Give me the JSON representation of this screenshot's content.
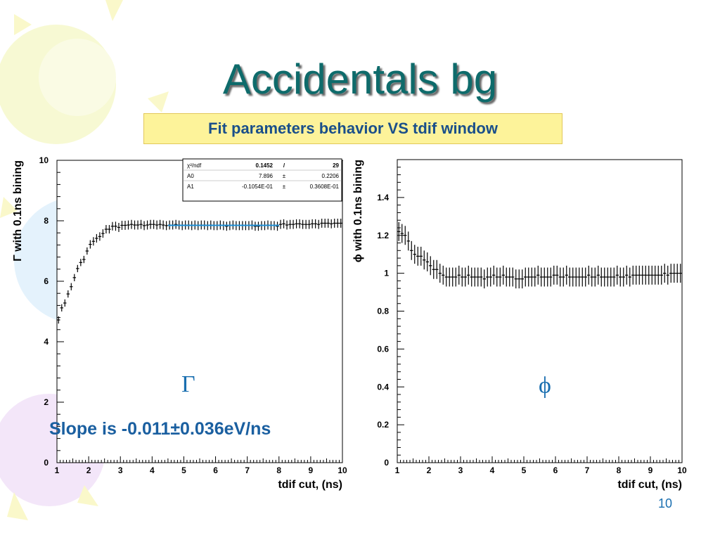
{
  "slide": {
    "title": "Accidentals bg",
    "subtitle": "Fit parameters behavior VS tdif window",
    "slope_text": "Slope is -0.011±0.036eV/ns",
    "page_number": "10",
    "colors": {
      "title": "#0e6b6b",
      "subtitle_bg": "#fdf39a",
      "subtitle_text": "#1a4f8a",
      "annotation": "#1a6fb0"
    }
  },
  "chart_data": [
    {
      "type": "scatter",
      "name": "gamma-plot",
      "title": "",
      "xlabel": "tdif cut, (ns)",
      "ylabel": "Γ with 0.1ns bining",
      "annotation": "Γ",
      "xlim": [
        1,
        10
      ],
      "ylim": [
        0,
        10
      ],
      "xticks": [
        "1",
        "2",
        "3",
        "4",
        "5",
        "6",
        "7",
        "8",
        "9",
        "10"
      ],
      "yticks": [
        "0",
        "2",
        "4",
        "6",
        "8",
        "10"
      ],
      "grid": false,
      "error_bars": true,
      "x": [
        1.05,
        1.15,
        1.25,
        1.35,
        1.45,
        1.55,
        1.65,
        1.75,
        1.85,
        1.95,
        2.05,
        2.15,
        2.25,
        2.35,
        2.45,
        2.55,
        2.65,
        2.75,
        2.85,
        2.95,
        3.05,
        3.15,
        3.25,
        3.35,
        3.45,
        3.55,
        3.65,
        3.75,
        3.85,
        3.95,
        4.05,
        4.15,
        4.25,
        4.35,
        4.45,
        4.55,
        4.65,
        4.75,
        4.85,
        4.95,
        5.05,
        5.15,
        5.25,
        5.35,
        5.45,
        5.55,
        5.65,
        5.75,
        5.85,
        5.95,
        6.05,
        6.15,
        6.25,
        6.35,
        6.45,
        6.55,
        6.65,
        6.75,
        6.85,
        6.95,
        7.05,
        7.15,
        7.25,
        7.35,
        7.45,
        7.55,
        7.65,
        7.75,
        7.85,
        7.95,
        8.05,
        8.15,
        8.25,
        8.35,
        8.45,
        8.55,
        8.65,
        8.75,
        8.85,
        8.95,
        9.05,
        9.15,
        9.25,
        9.35,
        9.45,
        9.55,
        9.65,
        9.75,
        9.85,
        9.95
      ],
      "y": [
        4.72,
        5.12,
        5.28,
        5.58,
        5.82,
        6.12,
        6.42,
        6.62,
        6.72,
        7.0,
        7.22,
        7.32,
        7.42,
        7.48,
        7.58,
        7.72,
        7.72,
        7.82,
        7.82,
        7.78,
        7.85,
        7.85,
        7.86,
        7.88,
        7.86,
        7.86,
        7.88,
        7.84,
        7.86,
        7.88,
        7.88,
        7.86,
        7.88,
        7.86,
        7.84,
        7.86,
        7.86,
        7.88,
        7.86,
        7.84,
        7.86,
        7.86,
        7.84,
        7.86,
        7.84,
        7.86,
        7.86,
        7.84,
        7.86,
        7.84,
        7.84,
        7.86,
        7.84,
        7.82,
        7.84,
        7.86,
        7.84,
        7.84,
        7.84,
        7.84,
        7.84,
        7.86,
        7.82,
        7.82,
        7.84,
        7.84,
        7.86,
        7.84,
        7.84,
        7.82,
        7.88,
        7.9,
        7.86,
        7.88,
        7.88,
        7.9,
        7.9,
        7.88,
        7.88,
        7.88,
        7.9,
        7.9,
        7.88,
        7.92,
        7.92,
        7.92,
        7.9,
        7.92,
        7.92,
        7.92
      ],
      "yerr": [
        0.12,
        0.12,
        0.12,
        0.12,
        0.12,
        0.12,
        0.12,
        0.12,
        0.12,
        0.12,
        0.14,
        0.14,
        0.14,
        0.14,
        0.14,
        0.14,
        0.14,
        0.14,
        0.15,
        0.15,
        0.15,
        0.15,
        0.15,
        0.15,
        0.15,
        0.15,
        0.15,
        0.15,
        0.15,
        0.15,
        0.15,
        0.15,
        0.15,
        0.15,
        0.15,
        0.15,
        0.15,
        0.15,
        0.15,
        0.15,
        0.15,
        0.15,
        0.15,
        0.15,
        0.15,
        0.15,
        0.15,
        0.15,
        0.15,
        0.15,
        0.15,
        0.15,
        0.15,
        0.15,
        0.15,
        0.15,
        0.15,
        0.15,
        0.15,
        0.15,
        0.15,
        0.15,
        0.15,
        0.15,
        0.15,
        0.15,
        0.15,
        0.15,
        0.15,
        0.15,
        0.15,
        0.15,
        0.15,
        0.15,
        0.15,
        0.15,
        0.15,
        0.15,
        0.15,
        0.15,
        0.15,
        0.15,
        0.15,
        0.15,
        0.15,
        0.15,
        0.15,
        0.15,
        0.15,
        0.15
      ],
      "fit": {
        "x": [
          4.5,
          8.0
        ],
        "y": [
          7.85,
          7.85
        ],
        "color": "#1f8fd6"
      },
      "stats_box": {
        "rows": [
          [
            "χ²/ndf",
            "0.1452",
            "/",
            "29"
          ],
          [
            "A0",
            "7.896",
            "±",
            "0.2206"
          ],
          [
            "A1",
            "-0.1054E-01",
            "±",
            "0.3608E-01"
          ]
        ]
      }
    },
    {
      "type": "scatter",
      "name": "phi-plot",
      "title": "",
      "xlabel": "tdif cut, (ns)",
      "ylabel": "ϕ with 0.1ns bining",
      "annotation": "ϕ",
      "xlim": [
        1,
        10
      ],
      "ylim": [
        0,
        1.6
      ],
      "xticks": [
        "1",
        "2",
        "3",
        "4",
        "5",
        "6",
        "7",
        "8",
        "9",
        "10"
      ],
      "yticks": [
        "0",
        "0.2",
        "0.4",
        "0.6",
        "0.8",
        "1",
        "1.2",
        "1.4"
      ],
      "grid": false,
      "error_bars": true,
      "x": [
        1.05,
        1.15,
        1.25,
        1.35,
        1.45,
        1.55,
        1.65,
        1.75,
        1.85,
        1.95,
        2.05,
        2.15,
        2.25,
        2.35,
        2.45,
        2.55,
        2.65,
        2.75,
        2.85,
        2.95,
        3.05,
        3.15,
        3.25,
        3.35,
        3.45,
        3.55,
        3.65,
        3.75,
        3.85,
        3.95,
        4.05,
        4.15,
        4.25,
        4.35,
        4.45,
        4.55,
        4.65,
        4.75,
        4.85,
        4.95,
        5.05,
        5.15,
        5.25,
        5.35,
        5.45,
        5.55,
        5.65,
        5.75,
        5.85,
        5.95,
        6.05,
        6.15,
        6.25,
        6.35,
        6.45,
        6.55,
        6.65,
        6.75,
        6.85,
        6.95,
        7.05,
        7.15,
        7.25,
        7.35,
        7.45,
        7.55,
        7.65,
        7.75,
        7.85,
        7.95,
        8.05,
        8.15,
        8.25,
        8.35,
        8.45,
        8.55,
        8.65,
        8.75,
        8.85,
        8.95,
        9.05,
        9.15,
        9.25,
        9.35,
        9.45,
        9.55,
        9.65,
        9.75,
        9.85,
        9.95
      ],
      "y": [
        1.22,
        1.21,
        1.2,
        1.17,
        1.12,
        1.1,
        1.09,
        1.09,
        1.07,
        1.06,
        1.04,
        1.02,
        1.02,
        1.0,
        0.99,
        0.98,
        0.98,
        0.98,
        0.98,
        0.99,
        0.98,
        0.98,
        0.99,
        0.98,
        0.98,
        0.98,
        0.98,
        0.97,
        0.98,
        0.98,
        0.99,
        0.98,
        0.98,
        0.99,
        0.98,
        0.98,
        0.98,
        0.97,
        0.97,
        0.97,
        0.98,
        0.98,
        0.98,
        0.98,
        0.99,
        0.98,
        0.98,
        0.98,
        0.98,
        0.99,
        0.99,
        0.98,
        0.98,
        0.99,
        0.98,
        0.98,
        0.98,
        0.98,
        0.98,
        0.98,
        0.99,
        0.98,
        0.98,
        0.99,
        0.98,
        0.98,
        0.98,
        0.98,
        0.98,
        0.99,
        0.98,
        0.98,
        0.99,
        0.98,
        0.99,
        0.99,
        0.99,
        0.99,
        0.99,
        0.99,
        0.99,
        0.99,
        0.99,
        0.99,
        1.0,
        0.99,
        1.0,
        1.0,
        1.0,
        1.0
      ],
      "yerr": [
        0.05,
        0.05,
        0.05,
        0.05,
        0.05,
        0.05,
        0.05,
        0.05,
        0.05,
        0.05,
        0.05,
        0.05,
        0.05,
        0.05,
        0.05,
        0.05,
        0.05,
        0.05,
        0.05,
        0.05,
        0.05,
        0.05,
        0.05,
        0.05,
        0.05,
        0.05,
        0.05,
        0.05,
        0.05,
        0.05,
        0.05,
        0.05,
        0.05,
        0.05,
        0.05,
        0.05,
        0.05,
        0.05,
        0.05,
        0.05,
        0.05,
        0.05,
        0.05,
        0.05,
        0.05,
        0.05,
        0.05,
        0.05,
        0.05,
        0.05,
        0.05,
        0.05,
        0.05,
        0.05,
        0.05,
        0.05,
        0.05,
        0.05,
        0.05,
        0.05,
        0.05,
        0.05,
        0.05,
        0.05,
        0.05,
        0.05,
        0.05,
        0.05,
        0.05,
        0.05,
        0.05,
        0.05,
        0.05,
        0.05,
        0.05,
        0.05,
        0.05,
        0.05,
        0.05,
        0.05,
        0.05,
        0.05,
        0.05,
        0.05,
        0.05,
        0.05,
        0.05,
        0.05,
        0.05,
        0.05
      ]
    }
  ]
}
